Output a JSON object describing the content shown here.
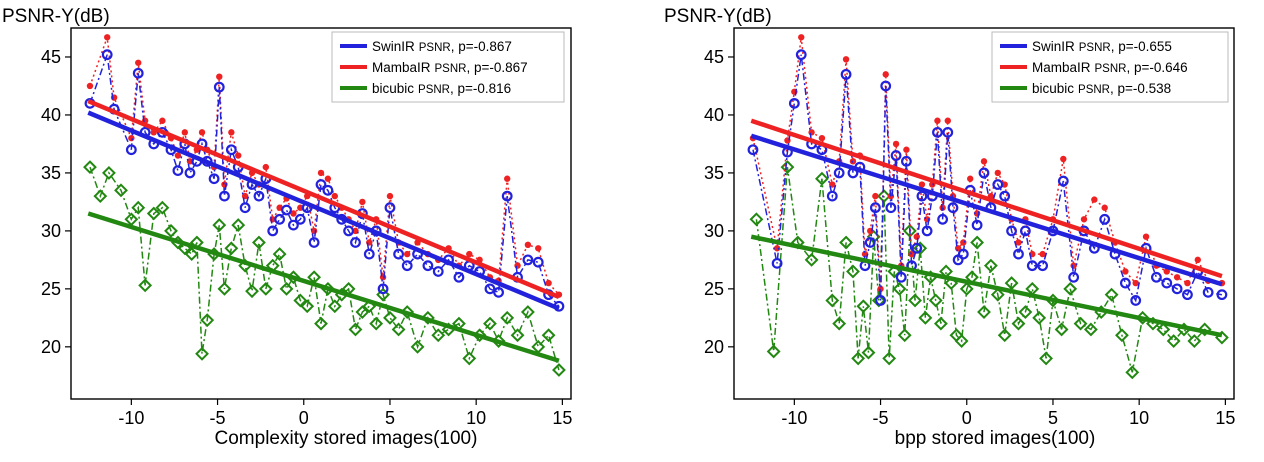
{
  "chart_data": [
    {
      "type": "scatter",
      "ylabel": "PSNR-Y(dB)",
      "xlabel": "Complexity stored images(100)",
      "xlim": [
        -13.5,
        15.5
      ],
      "ylim": [
        15.5,
        47.5
      ],
      "xticks": [
        -10,
        -5,
        0,
        5,
        10,
        15
      ],
      "yticks": [
        20,
        25,
        30,
        35,
        40,
        45
      ],
      "tick_labels_x": [
        "-10",
        "-5",
        "0",
        "5",
        "10",
        "15"
      ],
      "tick_labels_y": [
        "20",
        "25",
        "30",
        "35",
        "40",
        "45"
      ],
      "legend_position": "top-right",
      "series": [
        {
          "name": "SwinIR PSNR, p=-0.867",
          "label": "SwinIR",
          "psnr_tag": "PSNR",
          "stat": ", p=-0.867",
          "color": "#2222dd",
          "marker": "circle",
          "line": "dashdot",
          "fit": [
            [
              -12.5,
              40.2
            ],
            [
              14.8,
              23.3
            ]
          ],
          "x": [
            -12.4,
            -11.4,
            -11.0,
            -10.0,
            -9.6,
            -9.2,
            -8.7,
            -8.2,
            -7.7,
            -7.3,
            -6.9,
            -6.6,
            -6.2,
            -5.9,
            -5.6,
            -5.2,
            -4.9,
            -4.6,
            -4.2,
            -3.8,
            -3.4,
            -3.0,
            -2.6,
            -2.2,
            -1.8,
            -1.4,
            -1.0,
            -0.6,
            -0.2,
            0.2,
            0.6,
            1.0,
            1.4,
            1.8,
            2.2,
            2.6,
            3.0,
            3.4,
            3.8,
            4.2,
            4.6,
            5.0,
            5.5,
            6.0,
            6.6,
            7.2,
            7.8,
            8.4,
            9.0,
            9.6,
            10.2,
            10.8,
            11.3,
            11.8,
            12.4,
            13.0,
            13.6,
            14.2,
            14.8
          ],
          "y": [
            41.0,
            45.2,
            40.5,
            37.0,
            43.6,
            38.5,
            37.5,
            38.5,
            37.0,
            35.2,
            37.5,
            35.0,
            36.0,
            37.5,
            36.0,
            34.5,
            42.4,
            33.0,
            37.0,
            35.5,
            32.0,
            34.0,
            33.0,
            34.5,
            30.0,
            31.0,
            31.8,
            30.5,
            31.0,
            32.0,
            29.0,
            34.0,
            33.5,
            32.0,
            31.0,
            30.0,
            29.0,
            31.5,
            28.0,
            30.0,
            25.0,
            32.0,
            28.0,
            27.0,
            28.0,
            27.0,
            26.5,
            27.5,
            26.0,
            27.0,
            26.5,
            25.0,
            24.7,
            33.0,
            26.0,
            27.5,
            27.3,
            24.5,
            23.5
          ]
        },
        {
          "name": "MambaIR PSNR, p=-0.867",
          "label": "MambaIR",
          "psnr_tag": "PSNR",
          "stat": ", p=-0.867",
          "color": "#ee2222",
          "marker": "dot",
          "line": "dotted",
          "fit": [
            [
              -12.5,
              41.2
            ],
            [
              14.8,
              24.3
            ]
          ],
          "x": [
            -12.4,
            -11.4,
            -11.0,
            -10.0,
            -9.6,
            -9.2,
            -8.7,
            -8.2,
            -7.7,
            -7.3,
            -6.9,
            -6.6,
            -6.2,
            -5.9,
            -5.6,
            -5.2,
            -4.9,
            -4.6,
            -4.2,
            -3.8,
            -3.4,
            -3.0,
            -2.6,
            -2.2,
            -1.8,
            -1.4,
            -1.0,
            -0.6,
            -0.2,
            0.2,
            0.6,
            1.0,
            1.4,
            1.8,
            2.2,
            2.6,
            3.0,
            3.4,
            3.8,
            4.2,
            4.6,
            5.0,
            5.5,
            6.0,
            6.6,
            7.2,
            7.8,
            8.4,
            9.0,
            9.6,
            10.2,
            10.8,
            11.3,
            11.8,
            12.4,
            13.0,
            13.6,
            14.2,
            14.8
          ],
          "y": [
            42.5,
            46.7,
            41.5,
            38.0,
            44.5,
            39.5,
            38.5,
            39.5,
            38.0,
            36.5,
            38.5,
            36.0,
            37.0,
            38.5,
            37.0,
            35.5,
            43.3,
            34.0,
            38.5,
            36.5,
            33.0,
            35.0,
            34.0,
            35.5,
            31.0,
            32.0,
            32.8,
            31.5,
            32.0,
            33.0,
            30.0,
            35.0,
            34.5,
            33.0,
            32.0,
            31.0,
            30.0,
            32.5,
            29.0,
            31.0,
            26.0,
            33.0,
            29.0,
            28.0,
            29.0,
            28.0,
            27.5,
            28.5,
            27.0,
            28.0,
            27.5,
            26.0,
            25.7,
            34.5,
            27.0,
            28.8,
            28.5,
            25.5,
            24.5
          ]
        },
        {
          "name": "bicubic PSNR, p=-0.816",
          "label": "bicubic",
          "psnr_tag": "PSNR",
          "stat": ", p=-0.816",
          "color": "#228811",
          "marker": "diamond",
          "line": "dashdot",
          "fit": [
            [
              -12.5,
              31.5
            ],
            [
              14.8,
              18.8
            ]
          ],
          "x": [
            -12.4,
            -11.8,
            -11.3,
            -10.6,
            -10.0,
            -9.6,
            -9.2,
            -8.7,
            -8.2,
            -7.7,
            -7.3,
            -6.9,
            -6.5,
            -6.2,
            -5.9,
            -5.6,
            -5.2,
            -4.9,
            -4.6,
            -4.2,
            -3.8,
            -3.4,
            -3.0,
            -2.6,
            -2.2,
            -1.8,
            -1.4,
            -1.0,
            -0.6,
            -0.2,
            0.2,
            0.6,
            1.0,
            1.4,
            1.8,
            2.2,
            2.6,
            3.0,
            3.4,
            3.8,
            4.2,
            4.6,
            5.0,
            5.5,
            6.0,
            6.6,
            7.2,
            7.8,
            8.4,
            9.0,
            9.6,
            10.2,
            10.8,
            11.3,
            11.8,
            12.4,
            13.0,
            13.6,
            14.2,
            14.8
          ],
          "y": [
            35.5,
            33.0,
            35.0,
            33.5,
            31.0,
            32.0,
            25.3,
            31.5,
            32.0,
            30.0,
            29.0,
            28.5,
            28.0,
            29.0,
            19.4,
            22.3,
            28.0,
            30.5,
            25.0,
            28.5,
            30.5,
            27.0,
            24.8,
            29.0,
            25.0,
            27.0,
            28.0,
            25.0,
            26.0,
            24.0,
            23.5,
            26.0,
            22.0,
            25.0,
            23.5,
            24.5,
            25.0,
            21.5,
            23.0,
            23.5,
            22.0,
            24.5,
            22.5,
            21.5,
            23.0,
            20.0,
            22.5,
            21.0,
            21.5,
            22.0,
            19.0,
            21.0,
            22.0,
            20.5,
            22.5,
            21.0,
            23.0,
            20.0,
            21.0,
            18.0
          ]
        }
      ]
    },
    {
      "type": "scatter",
      "ylabel": "PSNR-Y(dB)",
      "xlabel": "bpp stored images(100)",
      "xlim": [
        -13.5,
        15.5
      ],
      "ylim": [
        15.5,
        47.5
      ],
      "xticks": [
        -10,
        -5,
        0,
        5,
        10,
        15
      ],
      "yticks": [
        20,
        25,
        30,
        35,
        40,
        45
      ],
      "tick_labels_x": [
        "-10",
        "-5",
        "0",
        "5",
        "10",
        "15"
      ],
      "tick_labels_y": [
        "20",
        "25",
        "30",
        "35",
        "40",
        "45"
      ],
      "legend_position": "top-right",
      "series": [
        {
          "name": "SwinIR PSNR, p=-0.655",
          "label": "SwinIR",
          "psnr_tag": "PSNR",
          "stat": ", p=-0.655",
          "color": "#2222dd",
          "marker": "circle",
          "line": "dashdot",
          "fit": [
            [
              -12.5,
              38.2
            ],
            [
              14.8,
              25.4
            ]
          ],
          "x": [
            -12.4,
            -11.0,
            -10.4,
            -10.0,
            -9.6,
            -9.0,
            -8.4,
            -7.8,
            -7.4,
            -7.0,
            -6.6,
            -6.2,
            -5.9,
            -5.6,
            -5.3,
            -5.0,
            -4.7,
            -4.4,
            -4.1,
            -3.8,
            -3.5,
            -3.2,
            -2.9,
            -2.6,
            -2.3,
            -2.0,
            -1.7,
            -1.4,
            -1.1,
            -0.8,
            -0.5,
            -0.2,
            0.2,
            0.6,
            1.0,
            1.4,
            1.8,
            2.2,
            2.6,
            3.0,
            3.4,
            3.8,
            4.4,
            5.0,
            5.6,
            6.2,
            6.8,
            7.4,
            8.0,
            8.6,
            9.2,
            9.8,
            10.4,
            11.0,
            11.6,
            12.2,
            12.8,
            13.4,
            14.0,
            14.8
          ],
          "y": [
            37.0,
            27.2,
            36.8,
            41.0,
            45.2,
            37.5,
            37.0,
            33.0,
            35.0,
            43.5,
            35.0,
            35.5,
            27.0,
            29.0,
            32.0,
            24.0,
            42.5,
            32.0,
            36.5,
            26.0,
            36.0,
            27.0,
            28.5,
            33.0,
            30.0,
            33.0,
            38.5,
            31.0,
            38.5,
            32.0,
            27.5,
            28.0,
            33.5,
            30.5,
            35.0,
            32.0,
            34.0,
            33.0,
            30.0,
            28.0,
            30.0,
            27.0,
            27.0,
            30.0,
            34.3,
            26.0,
            30.0,
            28.5,
            31.0,
            28.0,
            25.5,
            24.0,
            28.5,
            26.0,
            25.5,
            25.0,
            24.5,
            26.5,
            24.7,
            24.5
          ]
        },
        {
          "name": "MambaIR PSNR, p=-0.646",
          "label": "MambaIR",
          "psnr_tag": "PSNR",
          "stat": ", p=-0.646",
          "color": "#ee2222",
          "marker": "dot",
          "line": "dotted",
          "fit": [
            [
              -12.5,
              39.5
            ],
            [
              14.8,
              26.1
            ]
          ],
          "x": [
            -12.4,
            -11.0,
            -10.4,
            -10.0,
            -9.6,
            -9.0,
            -8.4,
            -7.8,
            -7.4,
            -7.0,
            -6.6,
            -6.2,
            -5.9,
            -5.6,
            -5.3,
            -5.0,
            -4.7,
            -4.4,
            -4.1,
            -3.8,
            -3.5,
            -3.2,
            -2.9,
            -2.6,
            -2.3,
            -2.0,
            -1.7,
            -1.4,
            -1.1,
            -0.8,
            -0.5,
            -0.2,
            0.2,
            0.6,
            1.0,
            1.4,
            1.8,
            2.2,
            2.6,
            3.0,
            3.4,
            3.8,
            4.4,
            5.0,
            5.6,
            6.2,
            6.8,
            7.4,
            8.0,
            8.6,
            9.2,
            9.8,
            10.4,
            11.0,
            11.6,
            12.2,
            12.8,
            13.4,
            14.0,
            14.8
          ],
          "y": [
            38.0,
            28.5,
            37.8,
            42.0,
            46.7,
            38.5,
            38.0,
            34.0,
            36.0,
            44.8,
            36.0,
            36.5,
            28.0,
            30.0,
            33.0,
            25.0,
            43.5,
            33.0,
            37.5,
            27.0,
            37.0,
            28.0,
            29.5,
            34.0,
            31.0,
            34.0,
            39.5,
            32.0,
            39.5,
            33.0,
            28.5,
            29.0,
            34.5,
            31.5,
            36.0,
            33.0,
            35.0,
            34.0,
            31.0,
            29.0,
            31.0,
            28.0,
            28.0,
            31.0,
            36.2,
            27.0,
            31.0,
            32.7,
            32.0,
            29.0,
            26.5,
            25.5,
            29.5,
            27.0,
            26.5,
            26.0,
            25.5,
            27.5,
            25.7,
            25.5
          ]
        },
        {
          "name": "bicubic PSNR, p=-0.538",
          "label": "bicubic",
          "psnr_tag": "PSNR",
          "stat": ", p=-0.538",
          "color": "#228811",
          "marker": "diamond",
          "line": "dashdot",
          "fit": [
            [
              -12.5,
              29.5
            ],
            [
              14.8,
              21.0
            ]
          ],
          "x": [
            -12.2,
            -11.2,
            -10.4,
            -9.8,
            -9.0,
            -8.4,
            -7.8,
            -7.4,
            -7.0,
            -6.6,
            -6.3,
            -6.0,
            -5.7,
            -5.4,
            -5.1,
            -4.8,
            -4.5,
            -4.2,
            -3.9,
            -3.6,
            -3.3,
            -3.0,
            -2.7,
            -2.4,
            -2.1,
            -1.8,
            -1.5,
            -1.2,
            -0.9,
            -0.6,
            -0.3,
            0.0,
            0.3,
            0.6,
            1.0,
            1.4,
            1.8,
            2.2,
            2.6,
            3.0,
            3.4,
            3.8,
            4.2,
            4.6,
            5.0,
            5.5,
            6.0,
            6.6,
            7.2,
            7.8,
            8.4,
            9.0,
            9.6,
            10.2,
            10.8,
            11.4,
            12.0,
            12.6,
            13.2,
            13.8,
            14.8
          ],
          "y": [
            31.0,
            19.6,
            35.5,
            29.0,
            27.5,
            34.5,
            24.0,
            22.0,
            29.0,
            26.5,
            19.0,
            23.5,
            19.5,
            29.5,
            24.0,
            33.0,
            19.0,
            26.5,
            25.0,
            21.0,
            30.0,
            24.0,
            28.5,
            22.5,
            26.0,
            24.0,
            22.0,
            26.5,
            25.5,
            21.0,
            20.5,
            25.0,
            26.0,
            29.0,
            23.0,
            27.0,
            24.5,
            21.0,
            25.5,
            22.0,
            23.0,
            25.0,
            22.5,
            19.0,
            24.0,
            21.5,
            25.0,
            22.0,
            21.5,
            23.0,
            24.5,
            21.0,
            17.8,
            22.5,
            22.0,
            21.5,
            20.5,
            21.5,
            20.5,
            21.5,
            20.8
          ]
        }
      ]
    }
  ]
}
